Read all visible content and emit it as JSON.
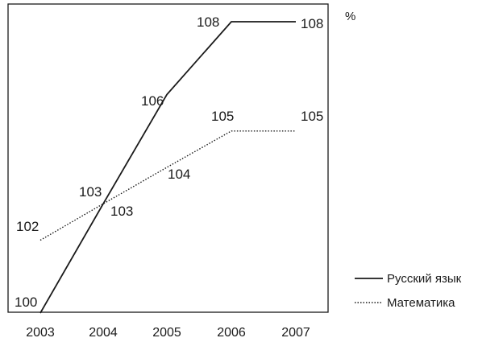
{
  "chart_data": {
    "type": "line",
    "title": "",
    "xlabel": "",
    "ylabel": "",
    "unit": "%",
    "x": [
      "2003",
      "2004",
      "2005",
      "2006",
      "2007"
    ],
    "ylim": [
      100,
      108
    ],
    "grid": false,
    "legend": "bottom-right",
    "series": [
      {
        "name": "Русский язык",
        "style": "solid",
        "color": "#1a1a1a",
        "values": [
          100,
          103,
          106,
          108,
          108
        ],
        "labels": [
          "100",
          "103",
          "106",
          "108",
          "108"
        ]
      },
      {
        "name": "Математика",
        "style": "dotted",
        "color": "#1a1a1a",
        "values": [
          102,
          103,
          104,
          105,
          105
        ],
        "labels": [
          "102",
          "103",
          "104",
          "105",
          "105"
        ]
      }
    ]
  }
}
